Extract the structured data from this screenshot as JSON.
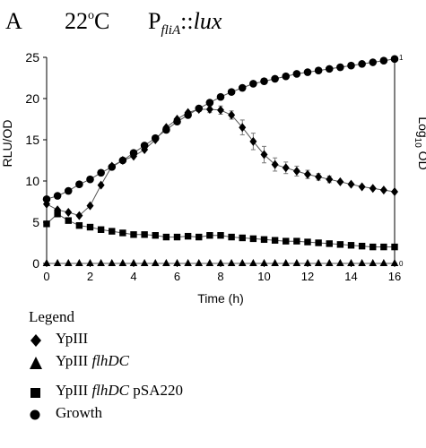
{
  "panel": {
    "letter": "A",
    "temp_value": "22",
    "temp_deg": "o",
    "temp_unit": "C",
    "promoter_p": "P",
    "promoter_sub": "fliA",
    "promoter_sep": "::",
    "promoter_reporter": "lux"
  },
  "legend": {
    "title": "Legend",
    "items": [
      {
        "prefix": "YpIII",
        "italic": "",
        "suffix": "",
        "symbol": "diamond"
      },
      {
        "prefix": "YpIII ",
        "italic": "flhDC",
        "suffix": "",
        "symbol": "triangle"
      },
      {
        "prefix": "YpIII ",
        "italic": "flhDC",
        "suffix": " pSA220",
        "symbol": "square"
      },
      {
        "prefix": "Growth",
        "italic": "",
        "suffix": "",
        "symbol": "circle"
      }
    ]
  },
  "chart_data": {
    "type": "line",
    "title": "",
    "xlabel": "Time (h)",
    "ylabel": "RLU/OD",
    "y2label_main": "Log",
    "y2label_sub": "10",
    "y2label_tail": " OD",
    "xlim": [
      0,
      16
    ],
    "ylim": [
      0,
      25
    ],
    "y2lim": [
      0,
      1
    ],
    "x_ticks": [
      0,
      2,
      4,
      6,
      8,
      10,
      12,
      14,
      16
    ],
    "y_ticks": [
      0,
      5,
      10,
      15,
      20,
      25
    ],
    "y2_ticks": [
      0,
      1
    ],
    "grid": false,
    "x": [
      0,
      0.5,
      1,
      1.5,
      2,
      2.5,
      3,
      3.5,
      4,
      4.5,
      5,
      5.5,
      6,
      6.5,
      7,
      7.5,
      8,
      8.5,
      9,
      9.5,
      10,
      10.5,
      11,
      11.5,
      12,
      12.5,
      13,
      13.5,
      14,
      14.5,
      15,
      15.5,
      16
    ],
    "series": [
      {
        "name": "YpIII",
        "marker": "diamond",
        "axis": "left",
        "values": [
          7.2,
          6.5,
          6.2,
          5.8,
          7.0,
          9.5,
          11.8,
          12.5,
          13.0,
          13.8,
          15.0,
          16.5,
          17.5,
          18.3,
          18.7,
          18.7,
          18.6,
          18.0,
          16.5,
          14.8,
          13.2,
          12.0,
          11.6,
          11.2,
          10.8,
          10.5,
          10.2,
          9.9,
          9.6,
          9.3,
          9.1,
          8.9,
          8.7
        ]
      },
      {
        "name": "YpIII flhDC",
        "marker": "triangle",
        "axis": "left",
        "values": [
          0,
          0,
          0,
          0,
          0,
          0,
          0,
          0,
          0,
          0,
          0,
          0,
          0,
          0,
          0,
          0,
          0,
          0,
          0,
          0,
          0,
          0,
          0,
          0,
          0,
          0,
          0,
          0,
          0,
          0,
          0,
          0,
          0
        ]
      },
      {
        "name": "YpIII flhDC pSA220",
        "marker": "square",
        "axis": "left",
        "values": [
          4.8,
          6.0,
          5.2,
          4.6,
          4.4,
          4.1,
          3.9,
          3.7,
          3.5,
          3.5,
          3.4,
          3.2,
          3.2,
          3.3,
          3.2,
          3.4,
          3.4,
          3.2,
          3.1,
          3.0,
          2.9,
          2.8,
          2.7,
          2.7,
          2.6,
          2.5,
          2.4,
          2.3,
          2.2,
          2.1,
          2.0,
          2.0,
          2.0
        ]
      },
      {
        "name": "Growth",
        "marker": "circle",
        "axis": "left",
        "values": [
          7.8,
          8.2,
          8.8,
          9.6,
          10.2,
          11.0,
          11.7,
          12.5,
          13.4,
          14.3,
          15.2,
          16.2,
          17.2,
          18.0,
          18.8,
          19.5,
          20.2,
          20.8,
          21.3,
          21.8,
          22.1,
          22.4,
          22.7,
          23.0,
          23.2,
          23.4,
          23.6,
          23.8,
          24.0,
          24.2,
          24.4,
          24.6,
          24.8
        ]
      }
    ],
    "error_bars": {
      "series": "YpIII",
      "x": [
        7.5,
        8,
        8.5,
        9,
        9.5,
        10,
        10.5,
        11,
        11.5,
        12,
        12.5,
        13
      ],
      "err": [
        0.4,
        0.5,
        0.5,
        0.9,
        1.0,
        1.0,
        0.8,
        0.7,
        0.6,
        0.5,
        0.4,
        0.4
      ]
    }
  }
}
